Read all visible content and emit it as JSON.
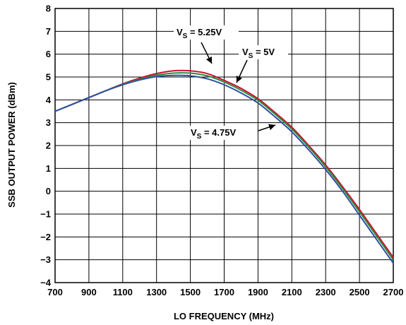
{
  "chart_data": {
    "type": "line",
    "xlabel": "LO FREQUENCY (MHz)",
    "ylabel": "SSB OUTPUT POWER (dBm)",
    "xlim": [
      700,
      2700
    ],
    "ylim": [
      -4,
      8
    ],
    "x_ticks": [
      700,
      900,
      1100,
      1300,
      1500,
      1700,
      1900,
      2100,
      2300,
      2500,
      2700
    ],
    "y_ticks": [
      8,
      7,
      6,
      5,
      4,
      3,
      2,
      1,
      0,
      -1,
      -2,
      -3,
      -4
    ],
    "y_tick_labels": [
      "8",
      "7",
      "6",
      "5",
      "4",
      "3",
      "2",
      "1",
      "0",
      "−1",
      "−2",
      "−3",
      "−4"
    ],
    "grid": true,
    "x": [
      700,
      800,
      900,
      1000,
      1100,
      1200,
      1300,
      1400,
      1500,
      1600,
      1700,
      1800,
      1900,
      2000,
      2100,
      2200,
      2300,
      2400,
      2500,
      2600,
      2700
    ],
    "series": [
      {
        "color": "#c8102e",
        "values": [
          3.5,
          3.8,
          4.1,
          4.4,
          4.7,
          4.95,
          5.15,
          5.27,
          5.27,
          5.15,
          4.85,
          4.5,
          4.05,
          3.45,
          2.8,
          2.0,
          1.15,
          0.2,
          -0.8,
          -1.85,
          -2.9
        ]
      },
      {
        "color": "#2e8b3a",
        "values": [
          3.5,
          3.8,
          4.1,
          4.4,
          4.68,
          4.9,
          5.08,
          5.17,
          5.17,
          5.05,
          4.78,
          4.42,
          3.98,
          3.38,
          2.72,
          1.93,
          1.07,
          0.12,
          -0.9,
          -1.95,
          -3.0
        ]
      },
      {
        "color": "#2f4fa0",
        "values": [
          3.5,
          3.8,
          4.1,
          4.4,
          4.66,
          4.87,
          5.02,
          5.07,
          5.05,
          4.92,
          4.66,
          4.3,
          3.86,
          3.26,
          2.6,
          1.81,
          0.95,
          0.0,
          -1.05,
          -2.1,
          -3.15
        ]
      }
    ],
    "annotations": [
      {
        "main": "V",
        "sub": "S",
        "rest": " = 5.25V"
      },
      {
        "main": "V",
        "sub": "S",
        "rest": " = 5V"
      },
      {
        "main": "V",
        "sub": "S",
        "rest": " = 4.75V"
      }
    ]
  }
}
